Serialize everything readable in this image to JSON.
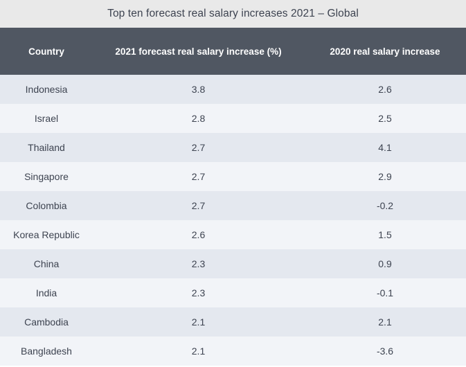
{
  "chart_data": {
    "type": "table",
    "title": "Top ten forecast real salary increases 2021 – Global",
    "columns": [
      "Country",
      "2021 forecast real salary increase (%)",
      "2020 real salary increase"
    ],
    "rows": [
      {
        "country": "Indonesia",
        "forecast_2021": "3.8",
        "actual_2020": "2.6"
      },
      {
        "country": "Israel",
        "forecast_2021": "2.8",
        "actual_2020": "2.5"
      },
      {
        "country": "Thailand",
        "forecast_2021": "2.7",
        "actual_2020": "4.1"
      },
      {
        "country": "Singapore",
        "forecast_2021": "2.7",
        "actual_2020": "2.9"
      },
      {
        "country": "Colombia",
        "forecast_2021": "2.7",
        "actual_2020": "-0.2"
      },
      {
        "country": "Korea Republic",
        "forecast_2021": "2.6",
        "actual_2020": "1.5"
      },
      {
        "country": "China",
        "forecast_2021": "2.3",
        "actual_2020": "0.9"
      },
      {
        "country": "India",
        "forecast_2021": "2.3",
        "actual_2020": "-0.1"
      },
      {
        "country": "Cambodia",
        "forecast_2021": "2.1",
        "actual_2020": "2.1"
      },
      {
        "country": "Bangladesh",
        "forecast_2021": "2.1",
        "actual_2020": "-3.6"
      }
    ]
  },
  "colors": {
    "title_background": "#e9e9e9",
    "header_background": "#505762",
    "row_odd": "#e4e8ef",
    "row_even": "#f2f4f8",
    "text": "#3d4350"
  }
}
